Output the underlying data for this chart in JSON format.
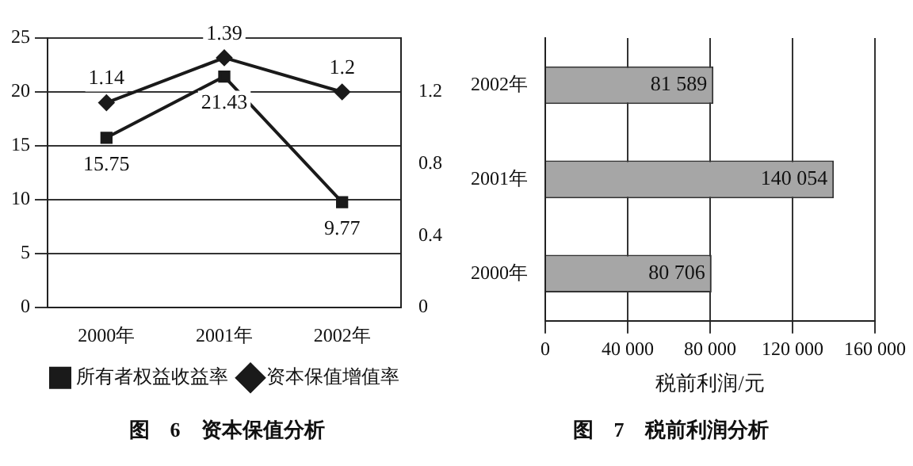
{
  "chart_data": [
    {
      "type": "line",
      "title": "图　6　资本保值分析",
      "categories": [
        "2000年",
        "2001年",
        "2002年"
      ],
      "series": [
        {
          "name": "所有者权益收益率",
          "color": "#1a1a1a",
          "marker": "square",
          "values": [
            15.75,
            21.43,
            9.77
          ]
        },
        {
          "name": "资本保值增值率",
          "color": "#1a1a1a",
          "marker": "diamond",
          "axis": "y2",
          "values": [
            1.14,
            1.39,
            1.2
          ]
        }
      ],
      "ylim": [
        0,
        25
      ],
      "yticks": [
        0,
        5,
        10,
        15,
        20,
        25
      ],
      "y2lim": [
        0,
        1.5
      ],
      "y2ticks": [
        0,
        0.4,
        0.8,
        1.2
      ],
      "grid": "y",
      "legend": "bottom",
      "data_labels": true,
      "line_style": "solid"
    },
    {
      "type": "bar",
      "orientation": "horizontal",
      "title": "图　7　税前利润分析",
      "xlabel": "税前利润/元",
      "categories": [
        "2002年",
        "2001年",
        "2000年"
      ],
      "values": [
        81589,
        140054,
        80706
      ],
      "color": "#a6a6a6",
      "value_labels": [
        "81 589",
        "140 054",
        "80 706"
      ],
      "xlim": [
        0,
        160000
      ],
      "xticks": [
        0,
        {
          "value": 40000,
          "label": "40 000"
        },
        {
          "value": 80000,
          "label": "80 000"
        },
        {
          "value": 120000,
          "label": "120 000"
        },
        {
          "value": 160000,
          "label": "160 000"
        }
      ],
      "grid": "x"
    }
  ]
}
